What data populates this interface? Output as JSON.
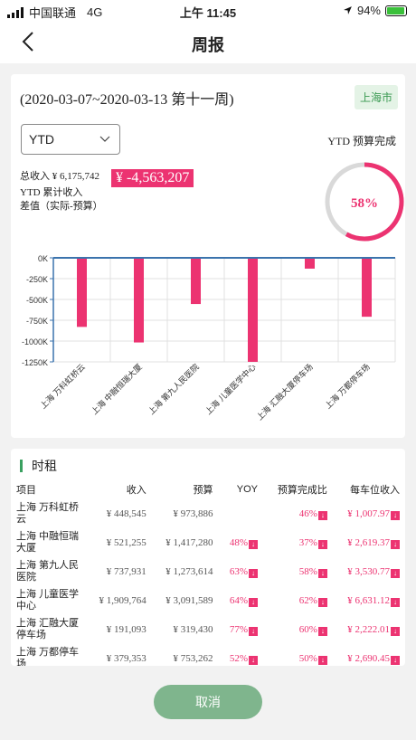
{
  "statusbar": {
    "carrier": "中国联通",
    "network": "4G",
    "time": "上午 11:45",
    "battery": "94%",
    "battery_level": 0.94
  },
  "nav": {
    "title": "周报"
  },
  "summary": {
    "period": "(2020-03-07~2020-03-13 第十一周)",
    "city": "上海市",
    "select_value": "YTD",
    "ytd_budget_label": "YTD 预算完成",
    "total_income": "总收入 ¥ 6,175,742",
    "diff_value": "¥ -4,563,207",
    "diff_label_1": "YTD 累计收入",
    "diff_label_2": "差值（实际-预算）",
    "completion": "58%",
    "completion_value": 0.58,
    "colors": {
      "accent": "#ec3371",
      "ring_bg": "#d9d9d9",
      "axis": "#3b73ad"
    }
  },
  "chart_data": {
    "type": "bar",
    "categories": [
      "上海 万科虹桥云",
      "上海 中融恒瑞大厦",
      "上海 第九人民医院",
      "上海 儿童医学中心",
      "上海 汇融大厦停车场",
      "上海 万都停车场"
    ],
    "values": [
      -830,
      -1017,
      -555,
      -1250,
      -130,
      -708
    ],
    "ylim": [
      -1250,
      0
    ],
    "yticks": [
      0,
      -250,
      -500,
      -750,
      -1000,
      -1250
    ],
    "ytick_labels": [
      "0K",
      "-250K",
      "-500K",
      "-750K",
      "-1000K",
      "-1250K"
    ],
    "grid": true,
    "bar_color": "#ec3371"
  },
  "rent": {
    "title": "时租",
    "headers": [
      "项目",
      "收入",
      "预算",
      "YOY",
      "预算完成比",
      "每车位收入"
    ],
    "rows": [
      {
        "project": "上海 万科虹桥云",
        "income": "¥ 448,545",
        "budget": "¥ 973,886",
        "yoy": "",
        "ratio": "46%",
        "per": "¥ 1,007.97"
      },
      {
        "project": "上海 中融恒瑞大厦",
        "income": "¥ 521,255",
        "budget": "¥ 1,417,280",
        "yoy": "48%",
        "ratio": "37%",
        "per": "¥ 2,619.37"
      },
      {
        "project": "上海 第九人民医院",
        "income": "¥ 737,931",
        "budget": "¥ 1,273,614",
        "yoy": "63%",
        "ratio": "58%",
        "per": "¥ 3,530.77"
      },
      {
        "project": "上海 儿童医学中心",
        "income": "¥ 1,909,764",
        "budget": "¥ 3,091,589",
        "yoy": "64%",
        "ratio": "62%",
        "per": "¥ 6,631.12"
      },
      {
        "project": "上海 汇融大厦停车场",
        "income": "¥ 191,093",
        "budget": "¥ 319,430",
        "yoy": "77%",
        "ratio": "60%",
        "per": "¥ 2,222.01"
      },
      {
        "project": "上海 万都停车场",
        "income": "¥ 379,353",
        "budget": "¥ 753,262",
        "yoy": "52%",
        "ratio": "50%",
        "per": "¥ 2,690.45"
      }
    ]
  },
  "footer": {
    "cancel_label": "取消"
  }
}
